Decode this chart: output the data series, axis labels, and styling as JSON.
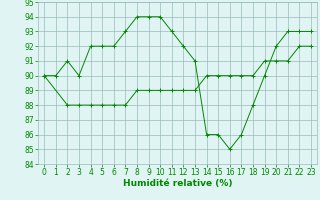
{
  "xlabel": "Humidité relative (%)",
  "line1_x": [
    0,
    1,
    2,
    3,
    4,
    5,
    6,
    7,
    8,
    9,
    10,
    11,
    12,
    13,
    14,
    15,
    16,
    17,
    18,
    19,
    20,
    21,
    22,
    23
  ],
  "line1_y": [
    90,
    90,
    91,
    90,
    92,
    92,
    92,
    93,
    94,
    94,
    94,
    93,
    92,
    91,
    86,
    86,
    85,
    86,
    88,
    90,
    92,
    93,
    93,
    93
  ],
  "line2_x": [
    0,
    2,
    3,
    4,
    5,
    6,
    7,
    8,
    9,
    10,
    11,
    12,
    13,
    14,
    15,
    16,
    17,
    18,
    19,
    20,
    21,
    22,
    23
  ],
  "line2_y": [
    90,
    88,
    88,
    88,
    88,
    88,
    88,
    89,
    89,
    89,
    89,
    89,
    89,
    90,
    90,
    90,
    90,
    90,
    91,
    91,
    91,
    92,
    92
  ],
  "line_color": "#008800",
  "bg_color": "#e0f4f4",
  "grid_color": "#99bbbb",
  "ylim": [
    84,
    95
  ],
  "xlim": [
    -0.5,
    23.5
  ],
  "yticks": [
    84,
    85,
    86,
    87,
    88,
    89,
    90,
    91,
    92,
    93,
    94,
    95
  ],
  "xticks": [
    0,
    1,
    2,
    3,
    4,
    5,
    6,
    7,
    8,
    9,
    10,
    11,
    12,
    13,
    14,
    15,
    16,
    17,
    18,
    19,
    20,
    21,
    22,
    23
  ],
  "tick_fontsize": 5.5,
  "xlabel_fontsize": 6.5
}
